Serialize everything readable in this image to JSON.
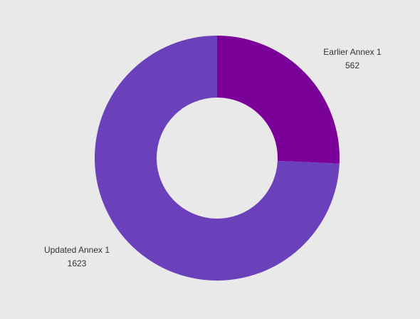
{
  "chart_data": {
    "type": "donut",
    "categories": [
      "Earlier Annex 1",
      "Updated Annex 1"
    ],
    "values": [
      562,
      1623
    ],
    "colors": [
      "#7b0099",
      "#6a41bb"
    ]
  }
}
